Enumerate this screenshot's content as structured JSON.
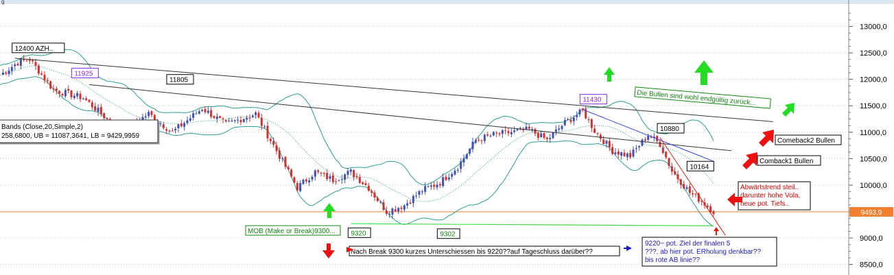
{
  "window": {
    "title_fragment": "g"
  },
  "colors": {
    "up_candle": "#3f51b5",
    "down_candle": "#d32f2f",
    "bollinger": "#2a9d8f",
    "bollinger_mid": "#2a9d8f",
    "trendline_black": "#333333",
    "trendline_blue": "#3344dd",
    "trendline_red": "#e02020",
    "support_green": "#44dd44",
    "price_line": "#f08030",
    "arrow_green": "#22dd22",
    "arrow_red": "#ee1111",
    "annotation_blue": "#1a1acc",
    "annotation_red": "#dd0000",
    "annotation_green": "#118811"
  },
  "chart_data": {
    "type": "candlestick",
    "y_axis": {
      "ticks": [
        "13000,0",
        "12500,0",
        "12000,0",
        "11500,0",
        "11000,0",
        "10500,0",
        "10000,0",
        "9000,0",
        "8500,0"
      ],
      "tick_values": [
        13000,
        12500,
        12000,
        11500,
        11000,
        10500,
        10000,
        9000,
        8500
      ],
      "ylim": [
        8300,
        13500
      ],
      "position": "right"
    },
    "current_price": {
      "label": "9493,9",
      "value": 9493.9
    },
    "close_anchors": [
      [
        0,
        12080
      ],
      [
        6,
        12320
      ],
      [
        10,
        12380
      ],
      [
        18,
        11800
      ],
      [
        28,
        11650
      ],
      [
        36,
        11250
      ],
      [
        42,
        11050
      ],
      [
        50,
        11350
      ],
      [
        58,
        11000
      ],
      [
        68,
        11450
      ],
      [
        76,
        11150
      ],
      [
        86,
        11350
      ],
      [
        94,
        10550
      ],
      [
        100,
        9950
      ],
      [
        106,
        10250
      ],
      [
        112,
        10100
      ],
      [
        118,
        10250
      ],
      [
        124,
        9950
      ],
      [
        130,
        9500
      ],
      [
        136,
        9620
      ],
      [
        142,
        9900
      ],
      [
        148,
        10050
      ],
      [
        154,
        10350
      ],
      [
        160,
        10850
      ],
      [
        166,
        10950
      ],
      [
        172,
        11000
      ],
      [
        178,
        11050
      ],
      [
        184,
        10850
      ],
      [
        190,
        11180
      ],
      [
        196,
        11400
      ],
      [
        200,
        11030
      ],
      [
        206,
        10650
      ],
      [
        212,
        10550
      ],
      [
        218,
        10950
      ],
      [
        222,
        10780
      ],
      [
        226,
        10270
      ],
      [
        232,
        9860
      ],
      [
        236,
        9700
      ],
      [
        240,
        9500
      ]
    ],
    "bollinger_indicator": {
      "label_line1": "Bands (Close,20,Simple,2)",
      "label_line2": "258,6800, UB = 11087,3641, LB = 9429,9959",
      "period": 20,
      "method": "Simple",
      "std_dev": 2,
      "upper": 11087.3641,
      "lower": 9429.9959
    },
    "price_labels": [
      {
        "text": "12400 AZH..",
        "i": 5,
        "value": 12400
      },
      {
        "text": "11925",
        "i": 25,
        "value": 11925
      },
      {
        "text": "11805",
        "i": 57,
        "value": 11805
      },
      {
        "text": "11430",
        "i": 196,
        "value": 11430
      },
      {
        "text": "10880",
        "i": 222,
        "value": 10880
      },
      {
        "text": "10164",
        "i": 232,
        "value": 10164
      },
      {
        "text": "9320",
        "i": 118,
        "value": 9320
      },
      {
        "text": "9302",
        "i": 148,
        "value": 9302
      }
    ],
    "trendlines": [
      {
        "kind": "black",
        "from": [
          5,
          12400
        ],
        "to": [
          260,
          11200
        ]
      },
      {
        "kind": "black",
        "from": [
          30,
          11900
        ],
        "to": [
          246,
          10650
        ]
      },
      {
        "kind": "blue",
        "from": [
          196,
          11430
        ],
        "to": [
          240,
          10450
        ]
      },
      {
        "kind": "red",
        "from": [
          222,
          10900
        ],
        "to": [
          244,
          9050
        ]
      },
      {
        "kind": "green",
        "from": [
          118,
          9270
        ],
        "to": [
          240,
          9230
        ]
      }
    ]
  },
  "annotations": {
    "mob": "MOB (Make or Break)9300...",
    "break_note": "Nach Break 9300 kurzes Unterschiessen bis 9220??auf Tageschluss darüber??",
    "target_line1": "9220~ pot. Ziel der finalen 5",
    "target_line2": "???, ab hier pot. ERholung denkbar??",
    "target_line3": "bis rote AB linie??",
    "downtrend_line1": "Abwärtstrend steil..",
    "downtrend_line2": "darunter hohe Vola,",
    "downtrend_line3": "neue pot. Tiefs..",
    "comeback1": "Comback1 Bullen",
    "comeback2": "Comeback2 Bullen",
    "bulls_back": "Die Bullen sind wohl endgültig zurück..."
  }
}
